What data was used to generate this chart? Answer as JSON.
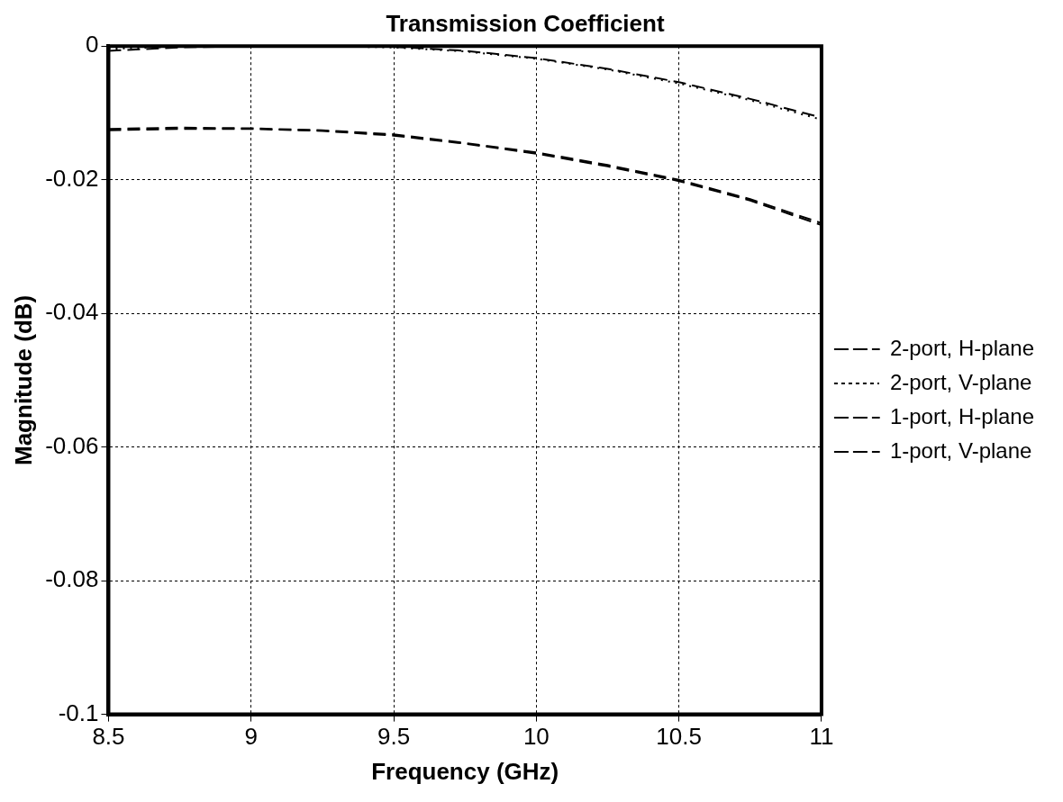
{
  "chart_data": {
    "type": "line",
    "title": "Transmission Coefficient",
    "xlabel": "Frequency (GHz)",
    "ylabel": "Magnitude (dB)",
    "x": [
      8.5,
      8.75,
      9,
      9.25,
      9.5,
      9.75,
      10,
      10.25,
      10.5,
      10.75,
      11
    ],
    "series": [
      {
        "name": "2-port, H-plane",
        "color": "#000000",
        "line_style": "dashed",
        "values": [
          -0.0124,
          -0.0122,
          -0.0123,
          -0.0126,
          -0.0132,
          -0.0145,
          -0.0159,
          -0.0178,
          -0.02,
          -0.0229,
          -0.0265
        ]
      },
      {
        "name": "2-port, V-plane",
        "color": "#000000",
        "line_style": "dotted",
        "values": [
          -0.0004,
          -0.0001,
          0,
          0,
          -0.0002,
          -0.0008,
          -0.0019,
          -0.0035,
          -0.0056,
          -0.0081,
          -0.011
        ]
      },
      {
        "name": "1-port, H-plane",
        "color": "#000000",
        "line_style": "dashed",
        "values": [
          -0.0007,
          -0.0002,
          0,
          0,
          -0.0001,
          -0.0007,
          -0.0018,
          -0.0034,
          -0.0054,
          -0.0079,
          -0.0107
        ]
      },
      {
        "name": "1-port, V-plane",
        "color": "#000000",
        "line_style": "dashed",
        "values": [
          -0.0126,
          -0.0124,
          -0.0124,
          -0.0127,
          -0.0134,
          -0.0146,
          -0.0161,
          -0.018,
          -0.0202,
          -0.0231,
          -0.0268
        ]
      }
    ],
    "xlim": [
      8.5,
      11
    ],
    "xticks": [
      8.5,
      9,
      9.5,
      10,
      10.5,
      11
    ],
    "ylim": [
      -0.1,
      0
    ],
    "yticks": [
      -0.1,
      -0.08,
      -0.06,
      -0.04,
      -0.02,
      0
    ],
    "grid": true,
    "legend": "right",
    "marker": "none"
  }
}
